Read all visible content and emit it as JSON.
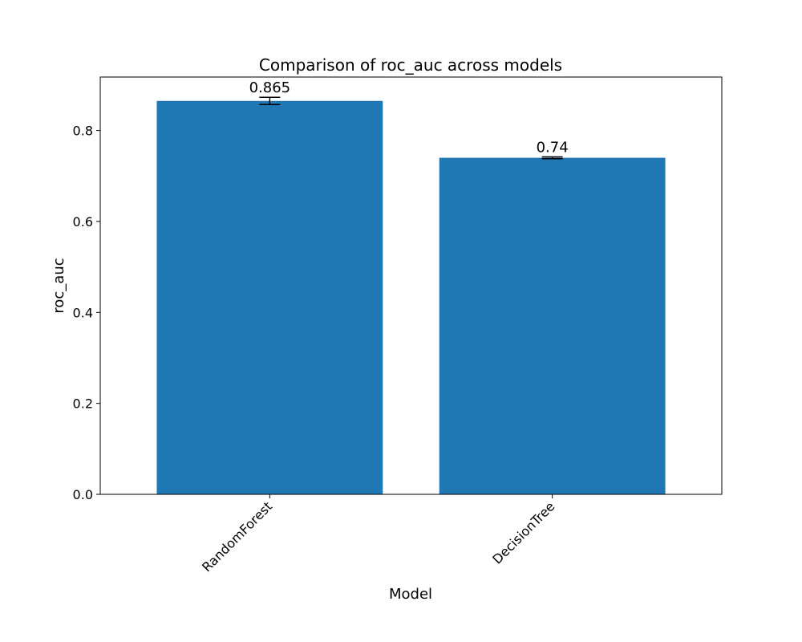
{
  "chart_data": {
    "type": "bar",
    "title": "Comparison of roc_auc across models",
    "xlabel": "Model",
    "ylabel": "roc_auc",
    "categories": [
      "RandomForest",
      "DecisionTree"
    ],
    "values": [
      0.865,
      0.74
    ],
    "error": [
      0.008,
      0.002
    ],
    "data_labels": [
      "0.865",
      "0.74"
    ],
    "ylim": [
      0,
      0.9175
    ],
    "yticks": [
      0.0,
      0.2,
      0.4,
      0.6,
      0.8
    ],
    "ytick_labels": [
      "0.0",
      "0.2",
      "0.4",
      "0.6",
      "0.8"
    ],
    "grid": false,
    "bar_color": "#1f77b4",
    "error_color": "#000000"
  }
}
